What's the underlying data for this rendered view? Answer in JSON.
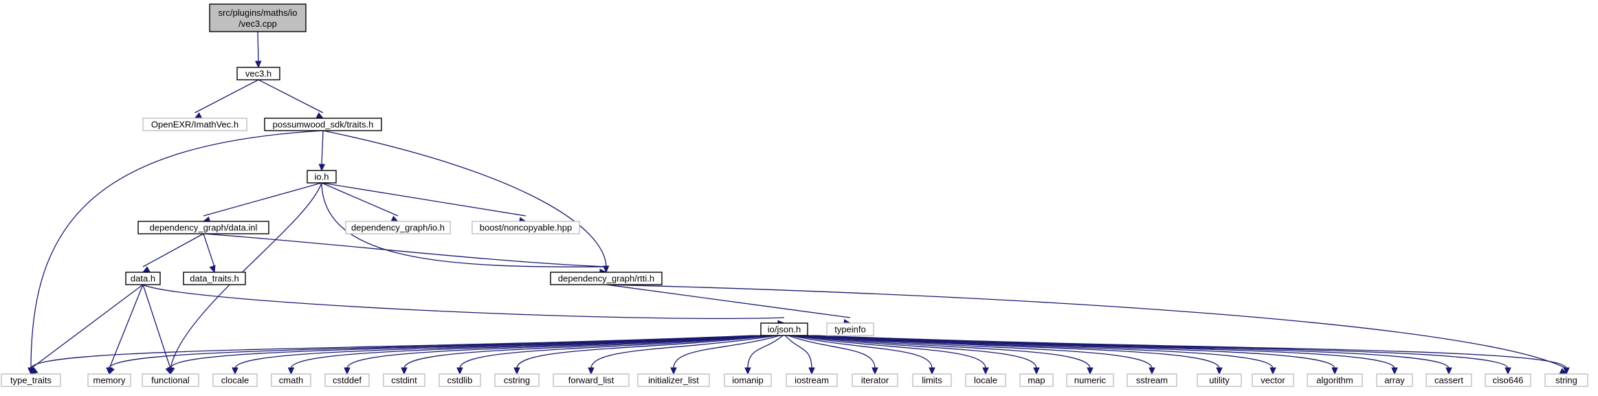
{
  "colors": {
    "edge": "#191970",
    "node_border": "#000000",
    "external_border": "#bfbfbf",
    "root_fill": "#bfbfbf",
    "node_fill": "#ffffff",
    "text": "#000000"
  },
  "nodes": {
    "vec3_cpp": {
      "label_line1": "src/plugins/maths/io",
      "label_line2": "/vec3.cpp",
      "kind": "root"
    },
    "vec3_h": {
      "label": "vec3.h",
      "kind": "file"
    },
    "imathvec_h": {
      "label": "OpenEXR/ImathVec.h",
      "kind": "external"
    },
    "traits_h": {
      "label": "possumwood_sdk/traits.h",
      "kind": "file"
    },
    "io_h": {
      "label": "io.h",
      "kind": "file"
    },
    "dg_data_inl": {
      "label": "dependency_graph/data.inl",
      "kind": "file"
    },
    "dg_io_h": {
      "label": "dependency_graph/io.h",
      "kind": "external"
    },
    "noncopyable": {
      "label": "boost/noncopyable.hpp",
      "kind": "external"
    },
    "data_h": {
      "label": "data.h",
      "kind": "file"
    },
    "data_traits_h": {
      "label": "data_traits.h",
      "kind": "file"
    },
    "rtti_h": {
      "label": "dependency_graph/rtti.h",
      "kind": "file"
    },
    "json_h": {
      "label": "io/json.h",
      "kind": "file"
    },
    "typeinfo": {
      "label": "typeinfo",
      "kind": "external"
    },
    "type_traits": {
      "label": "type_traits",
      "kind": "external"
    },
    "memory": {
      "label": "memory",
      "kind": "external"
    },
    "functional": {
      "label": "functional",
      "kind": "external"
    },
    "clocale": {
      "label": "clocale",
      "kind": "external"
    },
    "cmath": {
      "label": "cmath",
      "kind": "external"
    },
    "cstddef": {
      "label": "cstddef",
      "kind": "external"
    },
    "cstdint": {
      "label": "cstdint",
      "kind": "external"
    },
    "cstdlib": {
      "label": "cstdlib",
      "kind": "external"
    },
    "cstring": {
      "label": "cstring",
      "kind": "external"
    },
    "forward_list": {
      "label": "forward_list",
      "kind": "external"
    },
    "initializer_list": {
      "label": "initializer_list",
      "kind": "external"
    },
    "iomanip": {
      "label": "iomanip",
      "kind": "external"
    },
    "iostream": {
      "label": "iostream",
      "kind": "external"
    },
    "iterator": {
      "label": "iterator",
      "kind": "external"
    },
    "limits": {
      "label": "limits",
      "kind": "external"
    },
    "locale": {
      "label": "locale",
      "kind": "external"
    },
    "map": {
      "label": "map",
      "kind": "external"
    },
    "numeric": {
      "label": "numeric",
      "kind": "external"
    },
    "sstream": {
      "label": "sstream",
      "kind": "external"
    },
    "utility": {
      "label": "utility",
      "kind": "external"
    },
    "vector": {
      "label": "vector",
      "kind": "external"
    },
    "algorithm": {
      "label": "algorithm",
      "kind": "external"
    },
    "array": {
      "label": "array",
      "kind": "external"
    },
    "cassert": {
      "label": "cassert",
      "kind": "external"
    },
    "ciso646": {
      "label": "ciso646",
      "kind": "external"
    },
    "string": {
      "label": "string",
      "kind": "external"
    }
  },
  "edges": [
    {
      "from": "vec3_cpp",
      "to": "vec3_h"
    },
    {
      "from": "vec3_h",
      "to": "imathvec_h"
    },
    {
      "from": "vec3_h",
      "to": "traits_h"
    },
    {
      "from": "traits_h",
      "to": "io_h"
    },
    {
      "from": "traits_h",
      "to": "type_traits"
    },
    {
      "from": "traits_h",
      "to": "rtti_h"
    },
    {
      "from": "io_h",
      "to": "dg_data_inl"
    },
    {
      "from": "io_h",
      "to": "dg_io_h"
    },
    {
      "from": "io_h",
      "to": "noncopyable"
    },
    {
      "from": "io_h",
      "to": "functional"
    },
    {
      "from": "io_h",
      "to": "rtti_h"
    },
    {
      "from": "dg_data_inl",
      "to": "data_h"
    },
    {
      "from": "dg_data_inl",
      "to": "data_traits_h"
    },
    {
      "from": "dg_data_inl",
      "to": "rtti_h"
    },
    {
      "from": "data_h",
      "to": "type_traits"
    },
    {
      "from": "data_h",
      "to": "memory"
    },
    {
      "from": "data_h",
      "to": "functional"
    },
    {
      "from": "data_h",
      "to": "json_h"
    },
    {
      "from": "rtti_h",
      "to": "typeinfo"
    },
    {
      "from": "rtti_h",
      "to": "string"
    },
    {
      "from": "json_h",
      "to": "type_traits"
    },
    {
      "from": "json_h",
      "to": "memory"
    },
    {
      "from": "json_h",
      "to": "functional"
    },
    {
      "from": "json_h",
      "to": "clocale"
    },
    {
      "from": "json_h",
      "to": "cmath"
    },
    {
      "from": "json_h",
      "to": "cstddef"
    },
    {
      "from": "json_h",
      "to": "cstdint"
    },
    {
      "from": "json_h",
      "to": "cstdlib"
    },
    {
      "from": "json_h",
      "to": "cstring"
    },
    {
      "from": "json_h",
      "to": "forward_list"
    },
    {
      "from": "json_h",
      "to": "initializer_list"
    },
    {
      "from": "json_h",
      "to": "iomanip"
    },
    {
      "from": "json_h",
      "to": "iostream"
    },
    {
      "from": "json_h",
      "to": "iterator"
    },
    {
      "from": "json_h",
      "to": "limits"
    },
    {
      "from": "json_h",
      "to": "locale"
    },
    {
      "from": "json_h",
      "to": "map"
    },
    {
      "from": "json_h",
      "to": "numeric"
    },
    {
      "from": "json_h",
      "to": "sstream"
    },
    {
      "from": "json_h",
      "to": "utility"
    },
    {
      "from": "json_h",
      "to": "vector"
    },
    {
      "from": "json_h",
      "to": "algorithm"
    },
    {
      "from": "json_h",
      "to": "array"
    },
    {
      "from": "json_h",
      "to": "cassert"
    },
    {
      "from": "json_h",
      "to": "ciso646"
    },
    {
      "from": "json_h",
      "to": "string"
    }
  ]
}
